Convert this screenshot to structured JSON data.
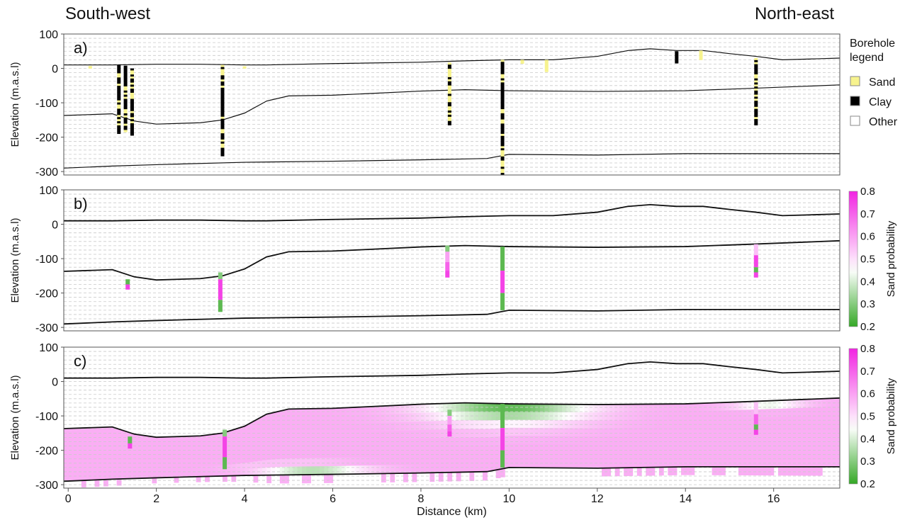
{
  "header": {
    "left": "South-west",
    "right": "North-east"
  },
  "chart_data": [
    {
      "id": "a",
      "type": "line",
      "panel_label": "a)",
      "ylabel": "Elevation (m.a.s.l)",
      "xlim": [
        -0.1,
        17.5
      ],
      "ylim": [
        -310,
        100
      ],
      "yticks": [
        100,
        0,
        -100,
        -200,
        -300
      ],
      "grid": "dashed horizontal every 12.5 m",
      "legend": {
        "title": "Borehole legend",
        "position": "right",
        "items": [
          {
            "label": "Sand",
            "color": "#f7f38e"
          },
          {
            "label": "Clay",
            "color": "#000000"
          },
          {
            "label": "Other",
            "color": "#ffffff"
          }
        ]
      },
      "surfaces": [
        {
          "points": [
            [
              -0.1,
              10
            ],
            [
              1,
              10
            ],
            [
              2,
              12
            ],
            [
              3,
              12
            ],
            [
              4,
              10
            ],
            [
              4.5,
              10
            ],
            [
              6,
              14
            ],
            [
              8,
              18
            ],
            [
              9,
              22
            ],
            [
              10,
              25
            ],
            [
              11,
              25
            ],
            [
              12,
              35
            ],
            [
              12.7,
              52
            ],
            [
              13.2,
              57
            ],
            [
              13.8,
              52
            ],
            [
              14.4,
              52
            ],
            [
              15,
              43
            ],
            [
              15.6,
              35
            ],
            [
              16.2,
              25
            ],
            [
              17,
              28
            ],
            [
              17.5,
              30
            ]
          ]
        },
        {
          "points": [
            [
              -0.1,
              -137
            ],
            [
              1,
              -132
            ],
            [
              1.5,
              -153
            ],
            [
              2,
              -162
            ],
            [
              3,
              -158
            ],
            [
              3.5,
              -150
            ],
            [
              4,
              -130
            ],
            [
              4.5,
              -95
            ],
            [
              5,
              -80
            ],
            [
              6,
              -78
            ],
            [
              8,
              -66
            ],
            [
              9,
              -62
            ],
            [
              10,
              -65
            ],
            [
              12,
              -67
            ],
            [
              14,
              -65
            ],
            [
              15.5,
              -58
            ],
            [
              17.5,
              -48
            ]
          ]
        },
        {
          "points": [
            [
              -0.1,
              -290
            ],
            [
              1,
              -284
            ],
            [
              2,
              -280
            ],
            [
              4,
              -273
            ],
            [
              6,
              -270
            ],
            [
              8,
              -266
            ],
            [
              9.5,
              -262
            ],
            [
              10,
              -250
            ],
            [
              12,
              -252
            ],
            [
              14,
              -248
            ],
            [
              17.5,
              -248
            ]
          ]
        }
      ],
      "boreholes": [
        {
          "x": 0.5,
          "top": 7,
          "bottom": 0,
          "sand": 1.0
        },
        {
          "x": 1.15,
          "top": 10,
          "bottom": -190,
          "sand": 0.25
        },
        {
          "x": 1.3,
          "top": 8,
          "bottom": -185,
          "sand": 0.3
        },
        {
          "x": 1.45,
          "top": 0,
          "bottom": -195,
          "sand": 0.3
        },
        {
          "x": 3.5,
          "top": 10,
          "bottom": -255,
          "sand": 0.3
        },
        {
          "x": 4.0,
          "top": 6,
          "bottom": 0,
          "sand": 1.0
        },
        {
          "x": 8.65,
          "top": 17,
          "bottom": -165,
          "sand": 0.55
        },
        {
          "x": 9.85,
          "top": 25,
          "bottom": -310,
          "sand": 0.25
        },
        {
          "x": 10.3,
          "top": 25,
          "bottom": 14,
          "sand": 1.0
        },
        {
          "x": 10.85,
          "top": 25,
          "bottom": -10,
          "sand": 0.9
        },
        {
          "x": 13.8,
          "top": 50,
          "bottom": 15,
          "sand": 0.0
        },
        {
          "x": 14.35,
          "top": 52,
          "bottom": 25,
          "sand": 1.0
        },
        {
          "x": 15.6,
          "top": 30,
          "bottom": -165,
          "sand": 0.35
        }
      ]
    },
    {
      "id": "b",
      "type": "line",
      "panel_label": "b)",
      "ylabel": "Elevation (m.a.s.l)",
      "xlim": [
        -0.1,
        17.5
      ],
      "ylim": [
        -310,
        100
      ],
      "yticks": [
        100,
        0,
        -100,
        -200,
        -300
      ],
      "colorbar": {
        "label": "Sand probability",
        "min": 0.2,
        "max": 0.8,
        "ticks": [
          0.8,
          0.7,
          0.6,
          0.5,
          0.4,
          0.3,
          0.2
        ]
      },
      "surfaces": [
        {
          "points": [
            [
              -0.1,
              10
            ],
            [
              1,
              10
            ],
            [
              2,
              12
            ],
            [
              3,
              12
            ],
            [
              4,
              10
            ],
            [
              4.5,
              10
            ],
            [
              6,
              14
            ],
            [
              8,
              18
            ],
            [
              9,
              22
            ],
            [
              10,
              25
            ],
            [
              11,
              25
            ],
            [
              12,
              35
            ],
            [
              12.7,
              52
            ],
            [
              13.2,
              57
            ],
            [
              13.8,
              52
            ],
            [
              14.4,
              52
            ],
            [
              15,
              43
            ],
            [
              15.6,
              35
            ],
            [
              16.2,
              25
            ],
            [
              17,
              28
            ],
            [
              17.5,
              30
            ]
          ]
        },
        {
          "points": [
            [
              -0.1,
              -137
            ],
            [
              1,
              -132
            ],
            [
              1.5,
              -153
            ],
            [
              2,
              -162
            ],
            [
              3,
              -158
            ],
            [
              3.5,
              -150
            ],
            [
              4,
              -130
            ],
            [
              4.5,
              -95
            ],
            [
              5,
              -80
            ],
            [
              6,
              -78
            ],
            [
              8,
              -66
            ],
            [
              9,
              -62
            ],
            [
              10,
              -65
            ],
            [
              12,
              -67
            ],
            [
              14,
              -65
            ],
            [
              15.5,
              -58
            ],
            [
              17.5,
              -48
            ]
          ]
        },
        {
          "points": [
            [
              -0.1,
              -290
            ],
            [
              1,
              -284
            ],
            [
              2,
              -280
            ],
            [
              4,
              -273
            ],
            [
              6,
              -270
            ],
            [
              8,
              -266
            ],
            [
              9.5,
              -262
            ],
            [
              10,
              -250
            ],
            [
              12,
              -252
            ],
            [
              14,
              -248
            ],
            [
              17.5,
              -248
            ]
          ]
        }
      ],
      "probability_logs": [
        {
          "x": 1.35,
          "segments": [
            [
              -160,
              -175,
              0.25
            ],
            [
              -175,
              -190,
              0.75
            ]
          ]
        },
        {
          "x": 3.45,
          "segments": [
            [
              -140,
              -160,
              0.3
            ],
            [
              -160,
              -220,
              0.75
            ],
            [
              -220,
              -255,
              0.25
            ]
          ]
        },
        {
          "x": 8.6,
          "segments": [
            [
              -62,
              -80,
              0.3
            ],
            [
              -80,
              -110,
              0.6
            ],
            [
              -110,
              -135,
              0.7
            ],
            [
              -135,
              -155,
              0.75
            ]
          ]
        },
        {
          "x": 9.85,
          "segments": [
            [
              -65,
              -135,
              0.25
            ],
            [
              -135,
              -200,
              0.75
            ],
            [
              -200,
              -250,
              0.25
            ]
          ]
        },
        {
          "x": 15.6,
          "segments": [
            [
              -58,
              -90,
              0.55
            ],
            [
              -90,
              -125,
              0.75
            ],
            [
              -125,
              -140,
              0.25
            ],
            [
              -140,
              -155,
              0.75
            ]
          ]
        }
      ]
    },
    {
      "id": "c",
      "type": "heatmap",
      "panel_label": "c)",
      "ylabel": "Elevation (m.a.s.l)",
      "xlabel": "Distance (km)",
      "xlim": [
        -0.1,
        17.5
      ],
      "ylim": [
        -310,
        100
      ],
      "xticks": [
        0,
        2,
        4,
        6,
        8,
        10,
        12,
        14,
        16
      ],
      "yticks": [
        100,
        0,
        -100,
        -200,
        -300
      ],
      "colorbar": {
        "label": "Sand probability",
        "min": 0.2,
        "max": 0.8,
        "ticks": [
          0.8,
          0.7,
          0.6,
          0.5,
          0.4,
          0.3,
          0.2
        ]
      },
      "surfaces": [
        {
          "points": [
            [
              -0.1,
              10
            ],
            [
              1,
              10
            ],
            [
              2,
              12
            ],
            [
              3,
              12
            ],
            [
              4,
              10
            ],
            [
              4.5,
              10
            ],
            [
              6,
              14
            ],
            [
              8,
              18
            ],
            [
              9,
              22
            ],
            [
              10,
              25
            ],
            [
              11,
              25
            ],
            [
              12,
              35
            ],
            [
              12.7,
              52
            ],
            [
              13.2,
              57
            ],
            [
              13.8,
              52
            ],
            [
              14.4,
              52
            ],
            [
              15,
              43
            ],
            [
              15.6,
              35
            ],
            [
              16.2,
              25
            ],
            [
              17,
              28
            ],
            [
              17.5,
              30
            ]
          ]
        },
        {
          "points": [
            [
              -0.1,
              -137
            ],
            [
              1,
              -132
            ],
            [
              1.5,
              -153
            ],
            [
              2,
              -162
            ],
            [
              3,
              -158
            ],
            [
              3.5,
              -150
            ],
            [
              4,
              -130
            ],
            [
              4.5,
              -95
            ],
            [
              5,
              -80
            ],
            [
              6,
              -78
            ],
            [
              8,
              -66
            ],
            [
              9,
              -62
            ],
            [
              10,
              -65
            ],
            [
              12,
              -67
            ],
            [
              14,
              -65
            ],
            [
              15.5,
              -58
            ],
            [
              17.5,
              -48
            ]
          ]
        },
        {
          "points": [
            [
              -0.1,
              -290
            ],
            [
              1,
              -284
            ],
            [
              2,
              -280
            ],
            [
              4,
              -273
            ],
            [
              6,
              -270
            ],
            [
              8,
              -266
            ],
            [
              9.5,
              -262
            ],
            [
              10,
              -250
            ],
            [
              12,
              -252
            ],
            [
              14,
              -248
            ],
            [
              17.5,
              -248
            ]
          ]
        }
      ],
      "field_base_probability": 0.58,
      "field_anomalies": [
        {
          "x": 10.0,
          "z": -70,
          "rx": 2.2,
          "rz": 65,
          "p": 0.25
        },
        {
          "x": 15.8,
          "z": -55,
          "rx": 1.0,
          "rz": 25,
          "p": 0.35
        },
        {
          "x": 5.5,
          "z": -255,
          "rx": 1.5,
          "rz": 18,
          "p": 0.35
        }
      ],
      "probability_logs": [
        {
          "x": 1.4,
          "segments": [
            [
              -160,
              -180,
              0.25
            ],
            [
              -180,
              -195,
              0.75
            ]
          ]
        },
        {
          "x": 3.55,
          "segments": [
            [
              -140,
              -160,
              0.3
            ],
            [
              -160,
              -220,
              0.75
            ],
            [
              -220,
              -255,
              0.25
            ]
          ]
        },
        {
          "x": 8.65,
          "segments": [
            [
              -82,
              -100,
              0.3
            ],
            [
              -100,
              -125,
              0.6
            ],
            [
              -125,
              -145,
              0.7
            ],
            [
              -145,
              -160,
              0.75
            ]
          ]
        },
        {
          "x": 9.85,
          "segments": [
            [
              -65,
              -135,
              0.25
            ],
            [
              -135,
              -200,
              0.75
            ],
            [
              -200,
              -250,
              0.25
            ]
          ]
        },
        {
          "x": 15.6,
          "segments": [
            [
              -60,
              -95,
              0.55
            ],
            [
              -95,
              -125,
              0.7
            ],
            [
              -125,
              -140,
              0.25
            ],
            [
              -140,
              -155,
              0.75
            ]
          ]
        }
      ]
    }
  ]
}
